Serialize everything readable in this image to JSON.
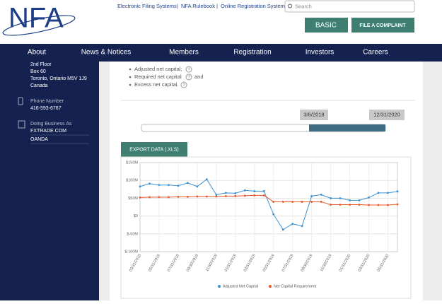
{
  "header": {
    "logo": "NFA",
    "links": [
      "Electronic Filing Systems",
      "NFA Rulebook",
      "Online Registration System"
    ],
    "link_separator": "|",
    "search_placeholder": "Search",
    "buttons": [
      "BASIC",
      "FILE A COMPLAINT"
    ]
  },
  "nav": [
    "About",
    "News & Notices",
    "Members",
    "Registration",
    "Investors",
    "Careers"
  ],
  "sidebar": {
    "address": [
      "2nd Floor",
      "Box 60",
      "Toronto, Ontario M5V 1J9",
      "Canada"
    ],
    "phone_label": "Phone Number",
    "phone": "416-593-6767",
    "dba_label": "Doing Business As",
    "dba": [
      "FXTRADE.COM",
      "OANDA"
    ]
  },
  "content": {
    "bullets": [
      "Adjusted net capital;",
      "Required net capital",
      "Excess net capital."
    ],
    "help_icon": "?",
    "conjunction": "and",
    "range": {
      "start": "3/6/2018",
      "end": "12/31/2020"
    },
    "export_button": "EXPORT DATA (.XLS)"
  },
  "chart_data": {
    "type": "line",
    "categories": [
      "03/31/2018",
      null,
      "05/31/2018",
      null,
      "07/31/2018",
      null,
      "09/30/2018",
      null,
      "11/30/2018",
      null,
      "01/31/2019",
      null,
      "03/31/2019",
      null,
      "05/31/2019",
      null,
      "07/31/2019",
      null,
      "09/30/2019",
      null,
      "11/30/2019",
      null,
      "01/31/2020",
      null,
      "03/31/2020",
      null,
      "05/31/2020",
      null
    ],
    "series": [
      {
        "name": "Adjusted Net Capital",
        "color": "#3a8fd0",
        "values": [
          83,
          91,
          87,
          87,
          85,
          93,
          83,
          103,
          60,
          65,
          64,
          72,
          70,
          70,
          5,
          -38,
          -22,
          -28,
          56,
          60,
          50,
          50,
          44,
          44,
          52,
          65,
          65,
          69
        ]
      },
      {
        "name": "Net Capital Requirement",
        "color": "#e8562a",
        "values": [
          52,
          53,
          53,
          53,
          54,
          54,
          55,
          55,
          55,
          56,
          56,
          57,
          58,
          58,
          40,
          40,
          40,
          40,
          40,
          40,
          32,
          32,
          32,
          32,
          31,
          31,
          31,
          33
        ]
      }
    ],
    "ylim": [
      -100,
      150
    ],
    "yticks": [
      {
        "value": -100,
        "label": "$-100M"
      },
      {
        "value": -50,
        "label": "$-50M"
      },
      {
        "value": 0,
        "label": "$0"
      },
      {
        "value": 50,
        "label": "$50M"
      },
      {
        "value": 100,
        "label": "$100M"
      },
      {
        "value": 150,
        "label": "$150M"
      }
    ],
    "grid": true,
    "legend": "bottom"
  }
}
